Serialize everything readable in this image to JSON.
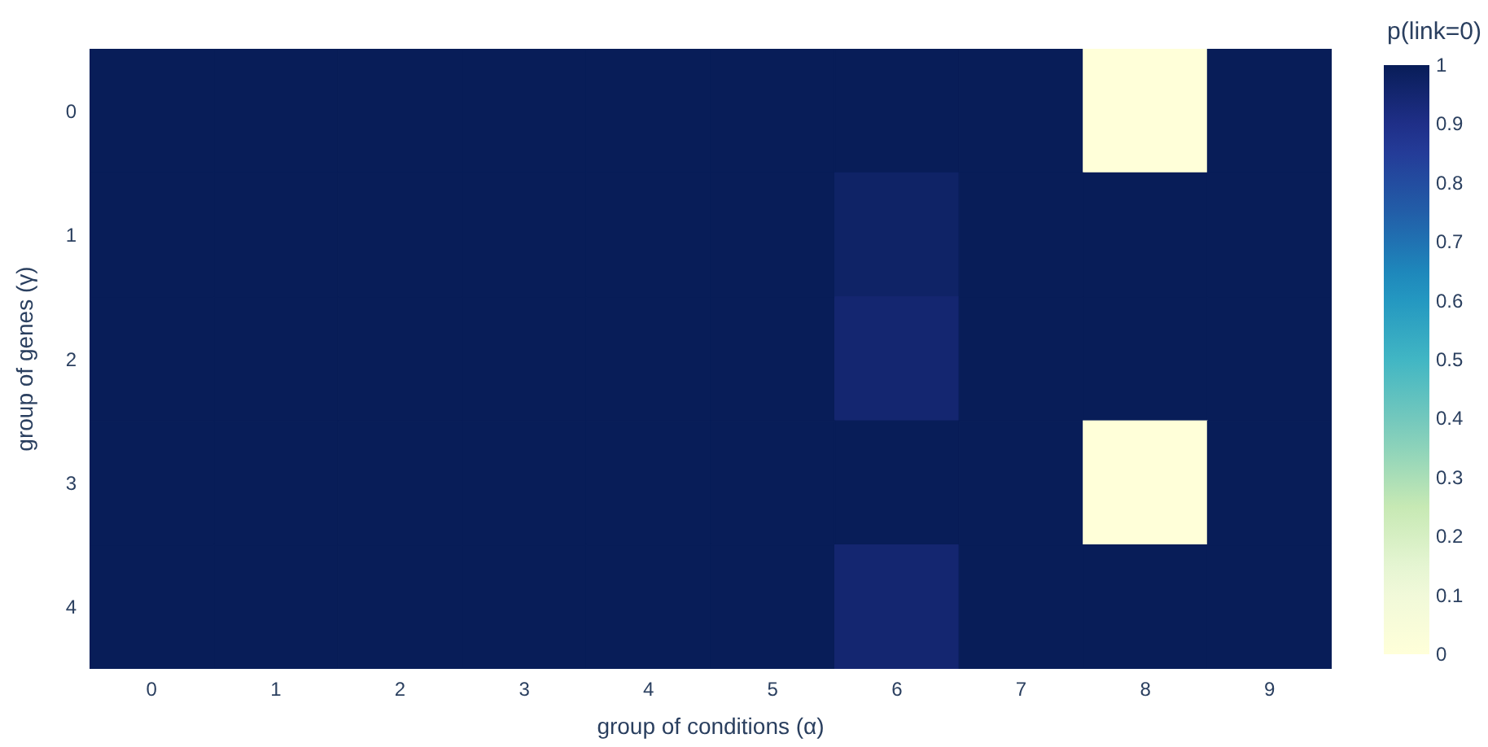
{
  "chart_data": {
    "type": "heatmap",
    "xlabel": "group of conditions (α)",
    "ylabel": "group of genes (γ)",
    "clabel": "p(link=0)",
    "categories": [
      "0",
      "1",
      "2",
      "3",
      "4",
      "5",
      "6",
      "7",
      "8",
      "9"
    ],
    "y_categories": [
      "0",
      "1",
      "2",
      "3",
      "4"
    ],
    "cells": [
      [
        1,
        1,
        1,
        1,
        1,
        1,
        1,
        1,
        0,
        1
      ],
      [
        1,
        1,
        1,
        1,
        1,
        1,
        0.97,
        1,
        1,
        1
      ],
      [
        1,
        1,
        1,
        1,
        1,
        1,
        0.95,
        1,
        1,
        1
      ],
      [
        1,
        1,
        1,
        1,
        1,
        1,
        1,
        1,
        0,
        1
      ],
      [
        1,
        1,
        1,
        1,
        1,
        1,
        0.95,
        1,
        1,
        1
      ]
    ],
    "clim": [
      0,
      1
    ],
    "cticks": [
      0,
      0.1,
      0.2,
      0.3,
      0.4,
      0.5,
      0.6,
      0.7,
      0.8,
      0.9,
      1
    ]
  }
}
